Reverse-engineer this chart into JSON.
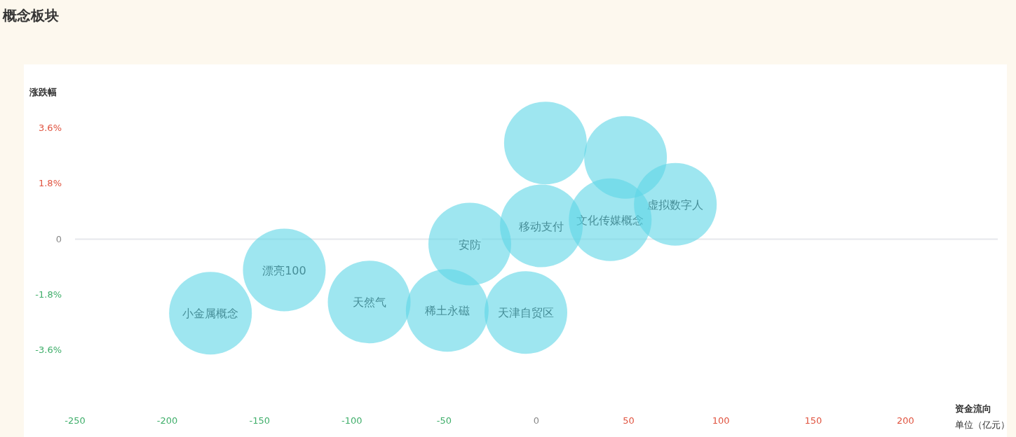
{
  "chart_data": {
    "type": "bubble",
    "title": "概念板块",
    "xlabel": "资金流向",
    "ylabel": "涨跌幅",
    "x": [
      -176.6,
      -136.6,
      -90.6,
      -48.3,
      -36.1,
      -5.7,
      2.7,
      4.9,
      48.3,
      40,
      75.3
    ],
    "values": [
      -2.4,
      -1.0,
      -2.04,
      -2.31,
      -0.16,
      -2.38,
      0.43,
      3.12,
      2.65,
      0.63,
      1.13
    ],
    "sizes": [
      1,
      1,
      1,
      1,
      1,
      1,
      1,
      1,
      1,
      1,
      1
    ],
    "color": "#5dd5e6",
    "xlim": [
      -250,
      250
    ],
    "xticks": [
      -250,
      -200,
      -150,
      -100,
      -50,
      0,
      50,
      100,
      150,
      200
    ],
    "ylim": [
      -3.6,
      3.6
    ],
    "yticks": [
      {
        "value": -3.6,
        "label": "-3.6%"
      },
      {
        "value": -1.8,
        "label": "-1.8%"
      },
      0,
      {
        "value": 1.8,
        "label": "1.8%"
      },
      {
        "value": 3.6,
        "label": "3.6%"
      }
    ],
    "ref_lines": [
      {
        "axis": "y",
        "value": 0,
        "color": "#e6e8ec"
      }
    ],
    "annotations": [
      {
        "text": "小金属概念",
        "x": -176.6,
        "y": -2.4
      },
      {
        "text": "漂亮100",
        "x": -136.6,
        "y": -1.0
      },
      {
        "text": "天然气",
        "x": -90.6,
        "y": -2.04
      },
      {
        "text": "稀土永磁",
        "x": -48.3,
        "y": -2.31
      },
      {
        "text": "安防",
        "x": -36.1,
        "y": -0.16
      },
      {
        "text": "天津自贸区",
        "x": -5.7,
        "y": -2.38
      },
      {
        "text": "移动支付",
        "x": 2.7,
        "y": 0.43
      },
      {
        "text": "文化传媒概念",
        "x": 40,
        "y": 0.63
      },
      {
        "text": "虚拟数字人",
        "x": 75.3,
        "y": 1.13
      },
      "单位（亿元）"
    ]
  }
}
